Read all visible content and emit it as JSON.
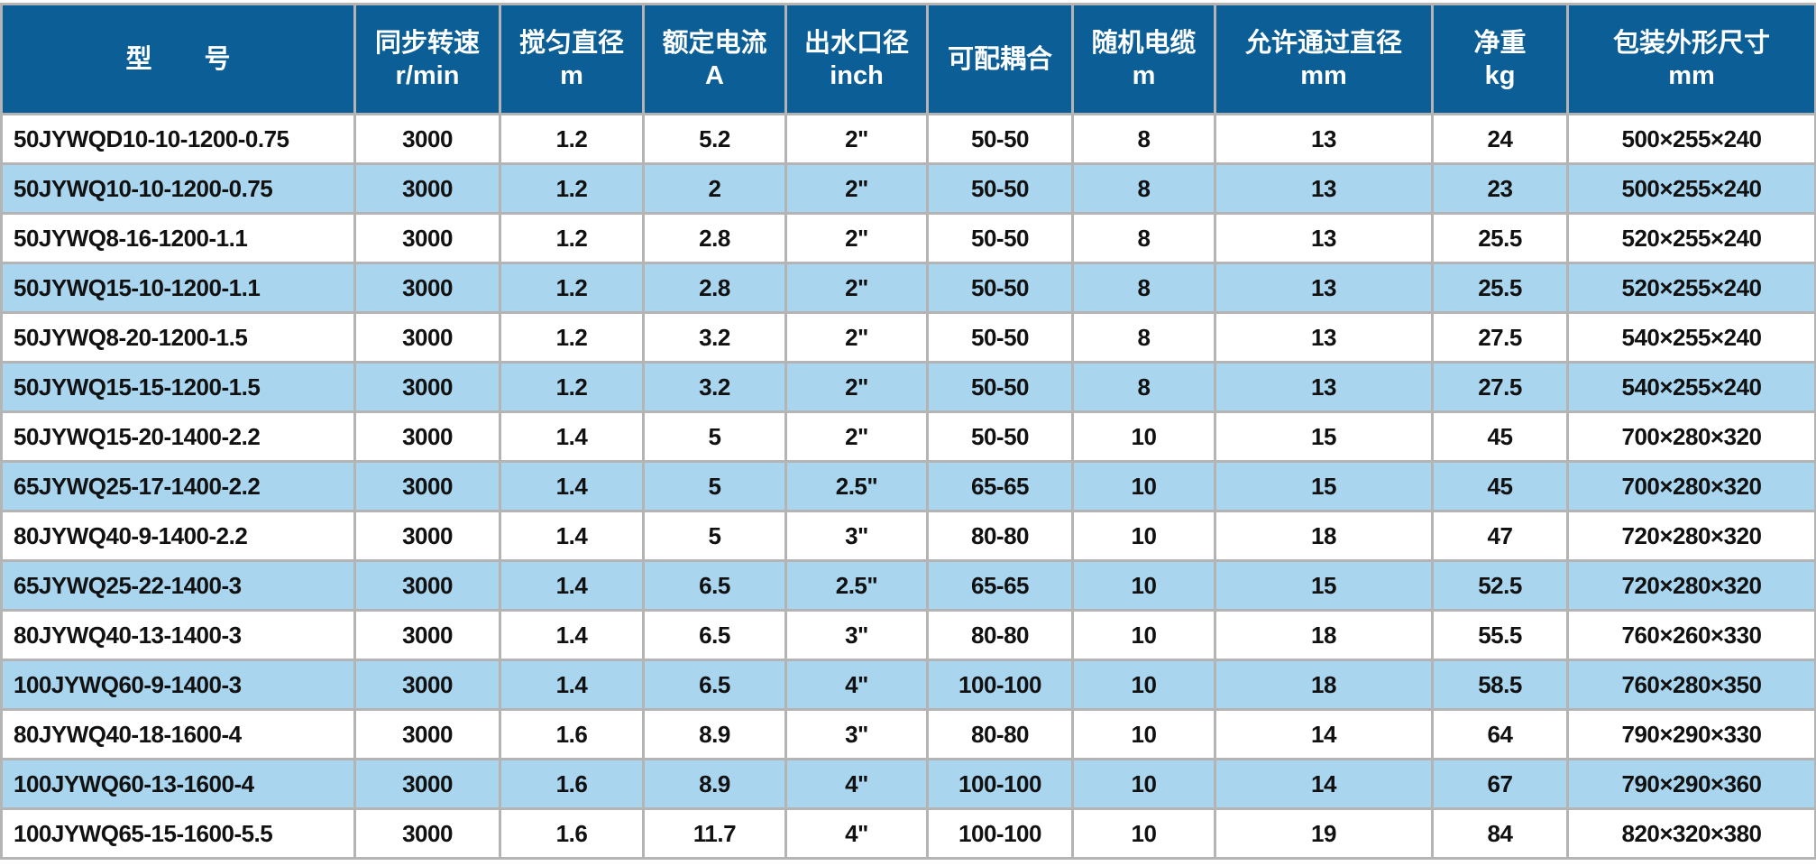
{
  "colors": {
    "header_bg": "#0b5e96",
    "alt_row_bg": "#a9d5ef",
    "border": "#b4b4b4"
  },
  "headers": [
    {
      "title": "型　　号",
      "unit": ""
    },
    {
      "title": "同步转速",
      "unit": "r/min"
    },
    {
      "title": "搅匀直径",
      "unit": "m"
    },
    {
      "title": "额定电流",
      "unit": "A"
    },
    {
      "title": "出水口径",
      "unit": "inch"
    },
    {
      "title": "可配耦合",
      "unit": ""
    },
    {
      "title": "随机电缆",
      "unit": "m"
    },
    {
      "title": "允许通过直径",
      "unit": "mm"
    },
    {
      "title": "净重",
      "unit": "kg"
    },
    {
      "title": "包装外形尺寸",
      "unit": "mm"
    }
  ],
  "rows": [
    [
      "50JYWQD10-10-1200-0.75",
      "3000",
      "1.2",
      "5.2",
      "2\"",
      "50-50",
      "8",
      "13",
      "24",
      "500×255×240"
    ],
    [
      "50JYWQ10-10-1200-0.75",
      "3000",
      "1.2",
      "2",
      "2\"",
      "50-50",
      "8",
      "13",
      "23",
      "500×255×240"
    ],
    [
      "50JYWQ8-16-1200-1.1",
      "3000",
      "1.2",
      "2.8",
      "2\"",
      "50-50",
      "8",
      "13",
      "25.5",
      "520×255×240"
    ],
    [
      "50JYWQ15-10-1200-1.1",
      "3000",
      "1.2",
      "2.8",
      "2\"",
      "50-50",
      "8",
      "13",
      "25.5",
      "520×255×240"
    ],
    [
      "50JYWQ8-20-1200-1.5",
      "3000",
      "1.2",
      "3.2",
      "2\"",
      "50-50",
      "8",
      "13",
      "27.5",
      "540×255×240"
    ],
    [
      "50JYWQ15-15-1200-1.5",
      "3000",
      "1.2",
      "3.2",
      "2\"",
      "50-50",
      "8",
      "13",
      "27.5",
      "540×255×240"
    ],
    [
      "50JYWQ15-20-1400-2.2",
      "3000",
      "1.4",
      "5",
      "2\"",
      "50-50",
      "10",
      "15",
      "45",
      "700×280×320"
    ],
    [
      "65JYWQ25-17-1400-2.2",
      "3000",
      "1.4",
      "5",
      "2.5\"",
      "65-65",
      "10",
      "15",
      "45",
      "700×280×320"
    ],
    [
      "80JYWQ40-9-1400-2.2",
      "3000",
      "1.4",
      "5",
      "3\"",
      "80-80",
      "10",
      "18",
      "47",
      "720×280×320"
    ],
    [
      "65JYWQ25-22-1400-3",
      "3000",
      "1.4",
      "6.5",
      "2.5\"",
      "65-65",
      "10",
      "15",
      "52.5",
      "720×280×320"
    ],
    [
      "80JYWQ40-13-1400-3",
      "3000",
      "1.4",
      "6.5",
      "3\"",
      "80-80",
      "10",
      "18",
      "55.5",
      "760×260×330"
    ],
    [
      "100JYWQ60-9-1400-3",
      "3000",
      "1.4",
      "6.5",
      "4\"",
      "100-100",
      "10",
      "18",
      "58.5",
      "760×280×350"
    ],
    [
      "80JYWQ40-18-1600-4",
      "3000",
      "1.6",
      "8.9",
      "3\"",
      "80-80",
      "10",
      "14",
      "64",
      "790×290×330"
    ],
    [
      "100JYWQ60-13-1600-4",
      "3000",
      "1.6",
      "8.9",
      "4\"",
      "100-100",
      "10",
      "14",
      "67",
      "790×290×360"
    ],
    [
      "100JYWQ65-15-1600-5.5",
      "3000",
      "1.6",
      "11.7",
      "4\"",
      "100-100",
      "10",
      "19",
      "84",
      "820×320×380"
    ]
  ]
}
